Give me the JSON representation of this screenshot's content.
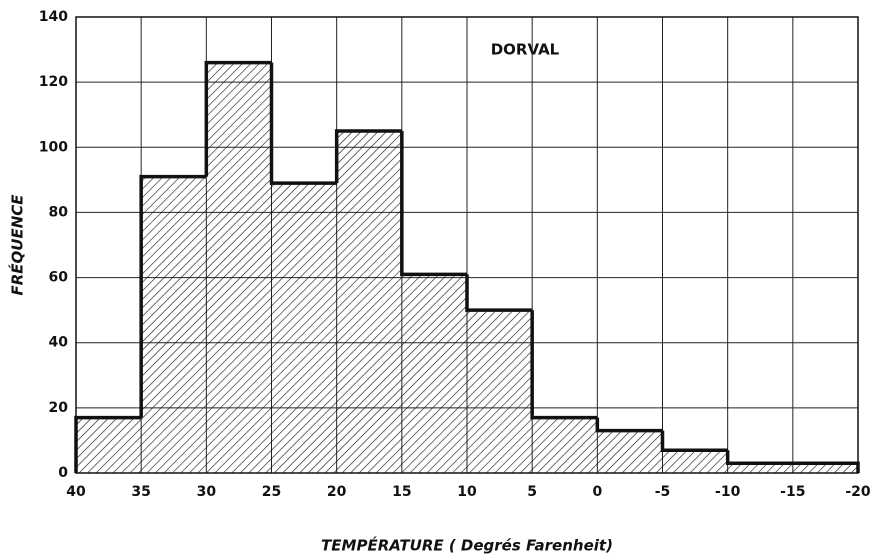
{
  "chart_data": {
    "type": "histogram",
    "annotation": "DORVAL",
    "xlabel": "TEMPÉRATURE ( Degrés Farenheit)",
    "ylabel": "FRÉQUENCE",
    "bins": [
      40,
      35,
      30,
      25,
      20,
      15,
      10,
      5,
      0,
      -5,
      -10,
      -15,
      -20
    ],
    "values": [
      17,
      91,
      126,
      89,
      105,
      61,
      50,
      17,
      13,
      7,
      3,
      3
    ],
    "color": "#111111",
    "xlim": [
      40,
      -20
    ],
    "xticks": [
      40,
      35,
      30,
      25,
      20,
      15,
      10,
      5,
      0,
      -5,
      -10,
      -15,
      -20
    ],
    "ylim": [
      0,
      140
    ],
    "yticks": [
      0,
      20,
      40,
      60,
      80,
      100,
      120,
      140
    ],
    "grid": true
  }
}
